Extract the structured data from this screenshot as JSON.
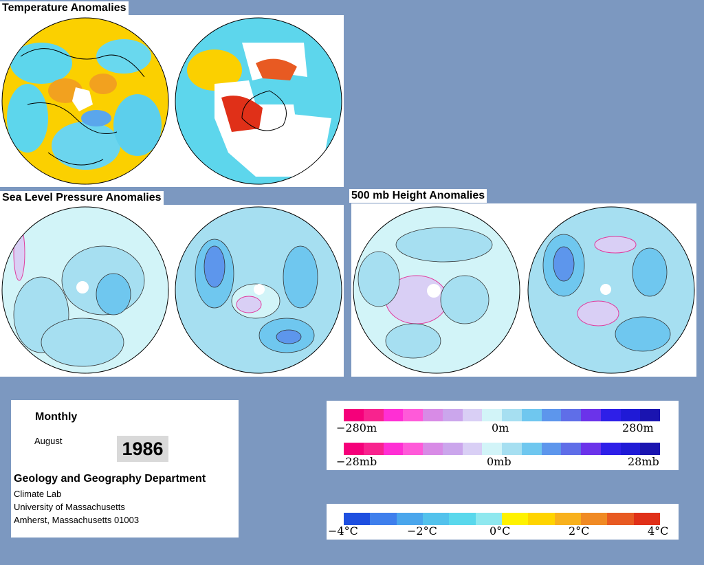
{
  "panels": {
    "temperature": {
      "title": "Temperature Anomalies"
    },
    "slp": {
      "title": "Sea Level Pressure Anomalies"
    },
    "height500": {
      "title": "500 mb Height Anomalies"
    }
  },
  "info": {
    "period": "Monthly",
    "month": "August",
    "year": "1986",
    "department": "Geology and Geography Department",
    "address_lines": [
      "Climate Lab",
      "University of Massachusetts",
      "Amherst, Massachusetts 01003"
    ]
  },
  "legends": {
    "height": {
      "min": "−280m",
      "mid": "0m",
      "max": "280m"
    },
    "pressure": {
      "min": "−28mb",
      "mid": "0mb",
      "max": "28mb"
    },
    "temperature": {
      "t1": "−4°C",
      "t2": "−2°C",
      "t3": "0°C",
      "t4": "2°C",
      "t5": "4°C"
    }
  },
  "colors": {
    "background": "#7c98c0",
    "temp_scale": [
      "#1e4fe0",
      "#3f7fec",
      "#4aa6ec",
      "#53c2ec",
      "#5ad8ec",
      "#8fe8ef",
      "#fff200",
      "#ffd400",
      "#f8b11d",
      "#f08a24",
      "#e85a22",
      "#e03018"
    ],
    "anomaly_scale": [
      "#f5007a",
      "#f8238e",
      "#ff2fd4",
      "#ff5ad9",
      "#d88be6",
      "#cba6ec",
      "#d9cff5",
      "#d2f4f8",
      "#a6dff1",
      "#6fc7ef",
      "#5d96ec",
      "#5f6ee8",
      "#6b33ea",
      "#2e1fe8",
      "#1f1ad6",
      "#1a14b0"
    ]
  }
}
